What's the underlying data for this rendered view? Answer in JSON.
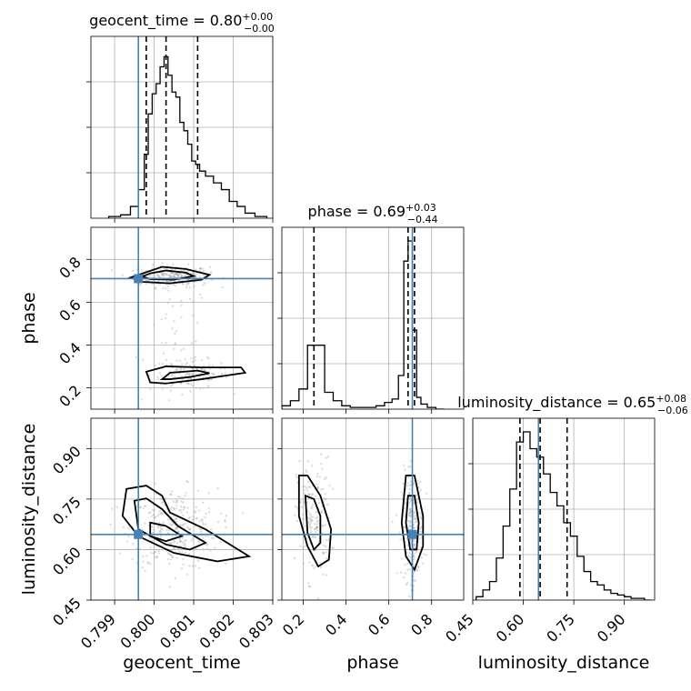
{
  "chart_data": {
    "type": "corner",
    "parameters": [
      "geocent_time",
      "phase",
      "luminosity_distance"
    ],
    "truths": {
      "geocent_time": 0.7996,
      "phase": 0.71,
      "luminosity_distance": 0.645
    },
    "titles": {
      "geocent_time": {
        "label": "geocent_time = 0.80",
        "sup": "+0.00",
        "sub": "−0.00"
      },
      "phase": {
        "label": "phase = 0.69",
        "sup": "+0.03",
        "sub": "−0.44"
      },
      "luminosity_distance": {
        "label": "luminosity_distance = 0.65",
        "sup": "+0.08",
        "sub": "−0.06"
      }
    },
    "ranges": {
      "geocent_time": [
        0.7984,
        0.803
      ],
      "phase": [
        0.1,
        0.95
      ],
      "luminosity_distance": [
        0.45,
        0.99
      ]
    },
    "ticks": {
      "geocent_time": [
        "0.799",
        "0.800",
        "0.801",
        "0.802",
        "0.803"
      ],
      "phase": [
        "0.2",
        "0.4",
        "0.6",
        "0.8"
      ],
      "luminosity_distance": [
        "0.45",
        "0.60",
        "0.75",
        "0.90"
      ]
    },
    "quantiles": {
      "geocent_time": [
        0.7998,
        0.8003,
        0.8011
      ],
      "phase": [
        0.25,
        0.69,
        0.72
      ],
      "luminosity_distance": [
        0.59,
        0.65,
        0.73
      ]
    },
    "histograms": {
      "geocent_time": {
        "x": [
          0.799,
          0.7993,
          0.7995,
          0.7997,
          0.7998,
          0.7999,
          0.8,
          0.8001,
          0.8002,
          0.8003,
          0.8004,
          0.8005,
          0.8006,
          0.8007,
          0.8008,
          0.8009,
          0.801,
          0.8011,
          0.8012,
          0.8014,
          0.8016,
          0.8018,
          0.802,
          0.8022,
          0.8024,
          0.8027
        ],
        "y": [
          0.01,
          0.02,
          0.07,
          0.17,
          0.38,
          0.62,
          0.74,
          0.8,
          0.9,
          0.96,
          0.85,
          0.75,
          0.72,
          0.57,
          0.52,
          0.44,
          0.34,
          0.32,
          0.28,
          0.25,
          0.21,
          0.17,
          0.1,
          0.07,
          0.03,
          0.01
        ]
      },
      "phase": {
        "x": [
          0.12,
          0.16,
          0.2,
          0.24,
          0.28,
          0.32,
          0.36,
          0.4,
          0.44,
          0.48,
          0.52,
          0.56,
          0.6,
          0.63,
          0.66,
          0.68,
          0.7,
          0.72,
          0.74,
          0.76,
          0.8,
          0.84
        ],
        "y": [
          0.02,
          0.05,
          0.12,
          0.38,
          0.38,
          0.1,
          0.05,
          0.02,
          0.01,
          0.01,
          0.01,
          0.02,
          0.04,
          0.06,
          0.2,
          0.88,
          1.0,
          0.47,
          0.07,
          0.03,
          0.01,
          0.0
        ]
      },
      "luminosity_distance": {
        "x": [
          0.47,
          0.49,
          0.51,
          0.53,
          0.55,
          0.57,
          0.59,
          0.61,
          0.63,
          0.65,
          0.67,
          0.69,
          0.71,
          0.73,
          0.75,
          0.77,
          0.79,
          0.81,
          0.83,
          0.85,
          0.87,
          0.89,
          0.91,
          0.93,
          0.95,
          0.97
        ],
        "y": [
          0.02,
          0.06,
          0.11,
          0.25,
          0.44,
          0.66,
          0.94,
          1.0,
          0.9,
          0.85,
          0.75,
          0.64,
          0.56,
          0.46,
          0.38,
          0.26,
          0.17,
          0.11,
          0.09,
          0.06,
          0.04,
          0.03,
          0.02,
          0.01,
          0.01,
          0.0
        ]
      }
    },
    "clusters": [
      {
        "pair": [
          "geocent_time",
          "phase"
        ],
        "cx": 0.8005,
        "cy": 0.72,
        "sx": 0.00045,
        "sy": 0.025,
        "n": 260
      },
      {
        "pair": [
          "geocent_time",
          "phase"
        ],
        "cx": 0.8009,
        "cy": 0.26,
        "sx": 0.0005,
        "sy": 0.035,
        "n": 150
      },
      {
        "pair": [
          "geocent_time",
          "phase"
        ],
        "cx": 0.8006,
        "cy": 0.45,
        "sx": 0.0004,
        "sy": 0.12,
        "n": 40
      },
      {
        "pair": [
          "geocent_time",
          "luminosity_distance"
        ],
        "cx": 0.8005,
        "cy": 0.66,
        "sx": 0.00055,
        "sy": 0.06,
        "n": 320
      },
      {
        "pair": [
          "phase",
          "luminosity_distance"
        ],
        "cx": 0.25,
        "cy": 0.69,
        "sx": 0.04,
        "sy": 0.09,
        "n": 180
      },
      {
        "pair": [
          "phase",
          "luminosity_distance"
        ],
        "cx": 0.71,
        "cy": 0.67,
        "sx": 0.025,
        "sy": 0.08,
        "n": 240
      }
    ],
    "contours": [
      {
        "pair": [
          "geocent_time",
          "phase"
        ],
        "level": "outer",
        "pts": [
          [
            0.7998,
            0.74
          ],
          [
            0.8002,
            0.765
          ],
          [
            0.8008,
            0.755
          ],
          [
            0.8014,
            0.728
          ],
          [
            0.8012,
            0.705
          ],
          [
            0.8004,
            0.688
          ],
          [
            0.7997,
            0.695
          ],
          [
            0.7994,
            0.715
          ]
        ]
      },
      {
        "pair": [
          "geocent_time",
          "phase"
        ],
        "level": "inner",
        "pts": [
          [
            0.7999,
            0.735
          ],
          [
            0.8003,
            0.748
          ],
          [
            0.8008,
            0.738
          ],
          [
            0.801,
            0.722
          ],
          [
            0.8005,
            0.705
          ],
          [
            0.7999,
            0.708
          ],
          [
            0.7997,
            0.72
          ]
        ]
      },
      {
        "pair": [
          "geocent_time",
          "phase"
        ],
        "level": "outer",
        "pts": [
          [
            0.7999,
            0.225
          ],
          [
            0.7998,
            0.275
          ],
          [
            0.8003,
            0.3
          ],
          [
            0.8012,
            0.295
          ],
          [
            0.8022,
            0.295
          ],
          [
            0.8023,
            0.27
          ],
          [
            0.8012,
            0.24
          ],
          [
            0.8003,
            0.22
          ]
        ]
      },
      {
        "pair": [
          "geocent_time",
          "phase"
        ],
        "level": "inner",
        "pts": [
          [
            0.8002,
            0.24
          ],
          [
            0.8004,
            0.27
          ],
          [
            0.8011,
            0.28
          ],
          [
            0.8014,
            0.268
          ],
          [
            0.8009,
            0.25
          ],
          [
            0.8004,
            0.24
          ]
        ]
      },
      {
        "pair": [
          "geocent_time",
          "luminosity_distance"
        ],
        "level": "outer",
        "pts": [
          [
            0.7993,
            0.78
          ],
          [
            0.7998,
            0.79
          ],
          [
            0.8002,
            0.76
          ],
          [
            0.8004,
            0.71
          ],
          [
            0.8013,
            0.66
          ],
          [
            0.8024,
            0.58
          ],
          [
            0.8016,
            0.565
          ],
          [
            0.8005,
            0.59
          ],
          [
            0.7996,
            0.64
          ],
          [
            0.7992,
            0.7
          ]
        ]
      },
      {
        "pair": [
          "geocent_time",
          "luminosity_distance"
        ],
        "level": "mid",
        "pts": [
          [
            0.7995,
            0.745
          ],
          [
            0.7998,
            0.752
          ],
          [
            0.8002,
            0.72
          ],
          [
            0.8006,
            0.67
          ],
          [
            0.8013,
            0.62
          ],
          [
            0.8009,
            0.6
          ],
          [
            0.8003,
            0.615
          ],
          [
            0.7996,
            0.66
          ]
        ]
      },
      {
        "pair": [
          "geocent_time",
          "luminosity_distance"
        ],
        "level": "inner",
        "pts": [
          [
            0.7999,
            0.68
          ],
          [
            0.8003,
            0.67
          ],
          [
            0.8007,
            0.64
          ],
          [
            0.8003,
            0.625
          ],
          [
            0.7999,
            0.64
          ]
        ]
      },
      {
        "pair": [
          "phase",
          "luminosity_distance"
        ],
        "level": "outer",
        "pts": [
          [
            0.18,
            0.82
          ],
          [
            0.22,
            0.82
          ],
          [
            0.28,
            0.76
          ],
          [
            0.33,
            0.66
          ],
          [
            0.32,
            0.57
          ],
          [
            0.27,
            0.55
          ],
          [
            0.22,
            0.61
          ],
          [
            0.18,
            0.7
          ]
        ]
      },
      {
        "pair": [
          "phase",
          "luminosity_distance"
        ],
        "level": "inner",
        "pts": [
          [
            0.21,
            0.76
          ],
          [
            0.25,
            0.75
          ],
          [
            0.28,
            0.7
          ],
          [
            0.28,
            0.62
          ],
          [
            0.25,
            0.6
          ],
          [
            0.22,
            0.65
          ]
        ]
      },
      {
        "pair": [
          "phase",
          "luminosity_distance"
        ],
        "level": "outer",
        "pts": [
          [
            0.68,
            0.82
          ],
          [
            0.72,
            0.82
          ],
          [
            0.76,
            0.7
          ],
          [
            0.76,
            0.61
          ],
          [
            0.72,
            0.54
          ],
          [
            0.68,
            0.58
          ],
          [
            0.66,
            0.68
          ]
        ]
      },
      {
        "pair": [
          "phase",
          "luminosity_distance"
        ],
        "level": "inner",
        "pts": [
          [
            0.69,
            0.76
          ],
          [
            0.72,
            0.76
          ],
          [
            0.74,
            0.68
          ],
          [
            0.73,
            0.6
          ],
          [
            0.7,
            0.6
          ],
          [
            0.68,
            0.68
          ]
        ]
      }
    ]
  }
}
